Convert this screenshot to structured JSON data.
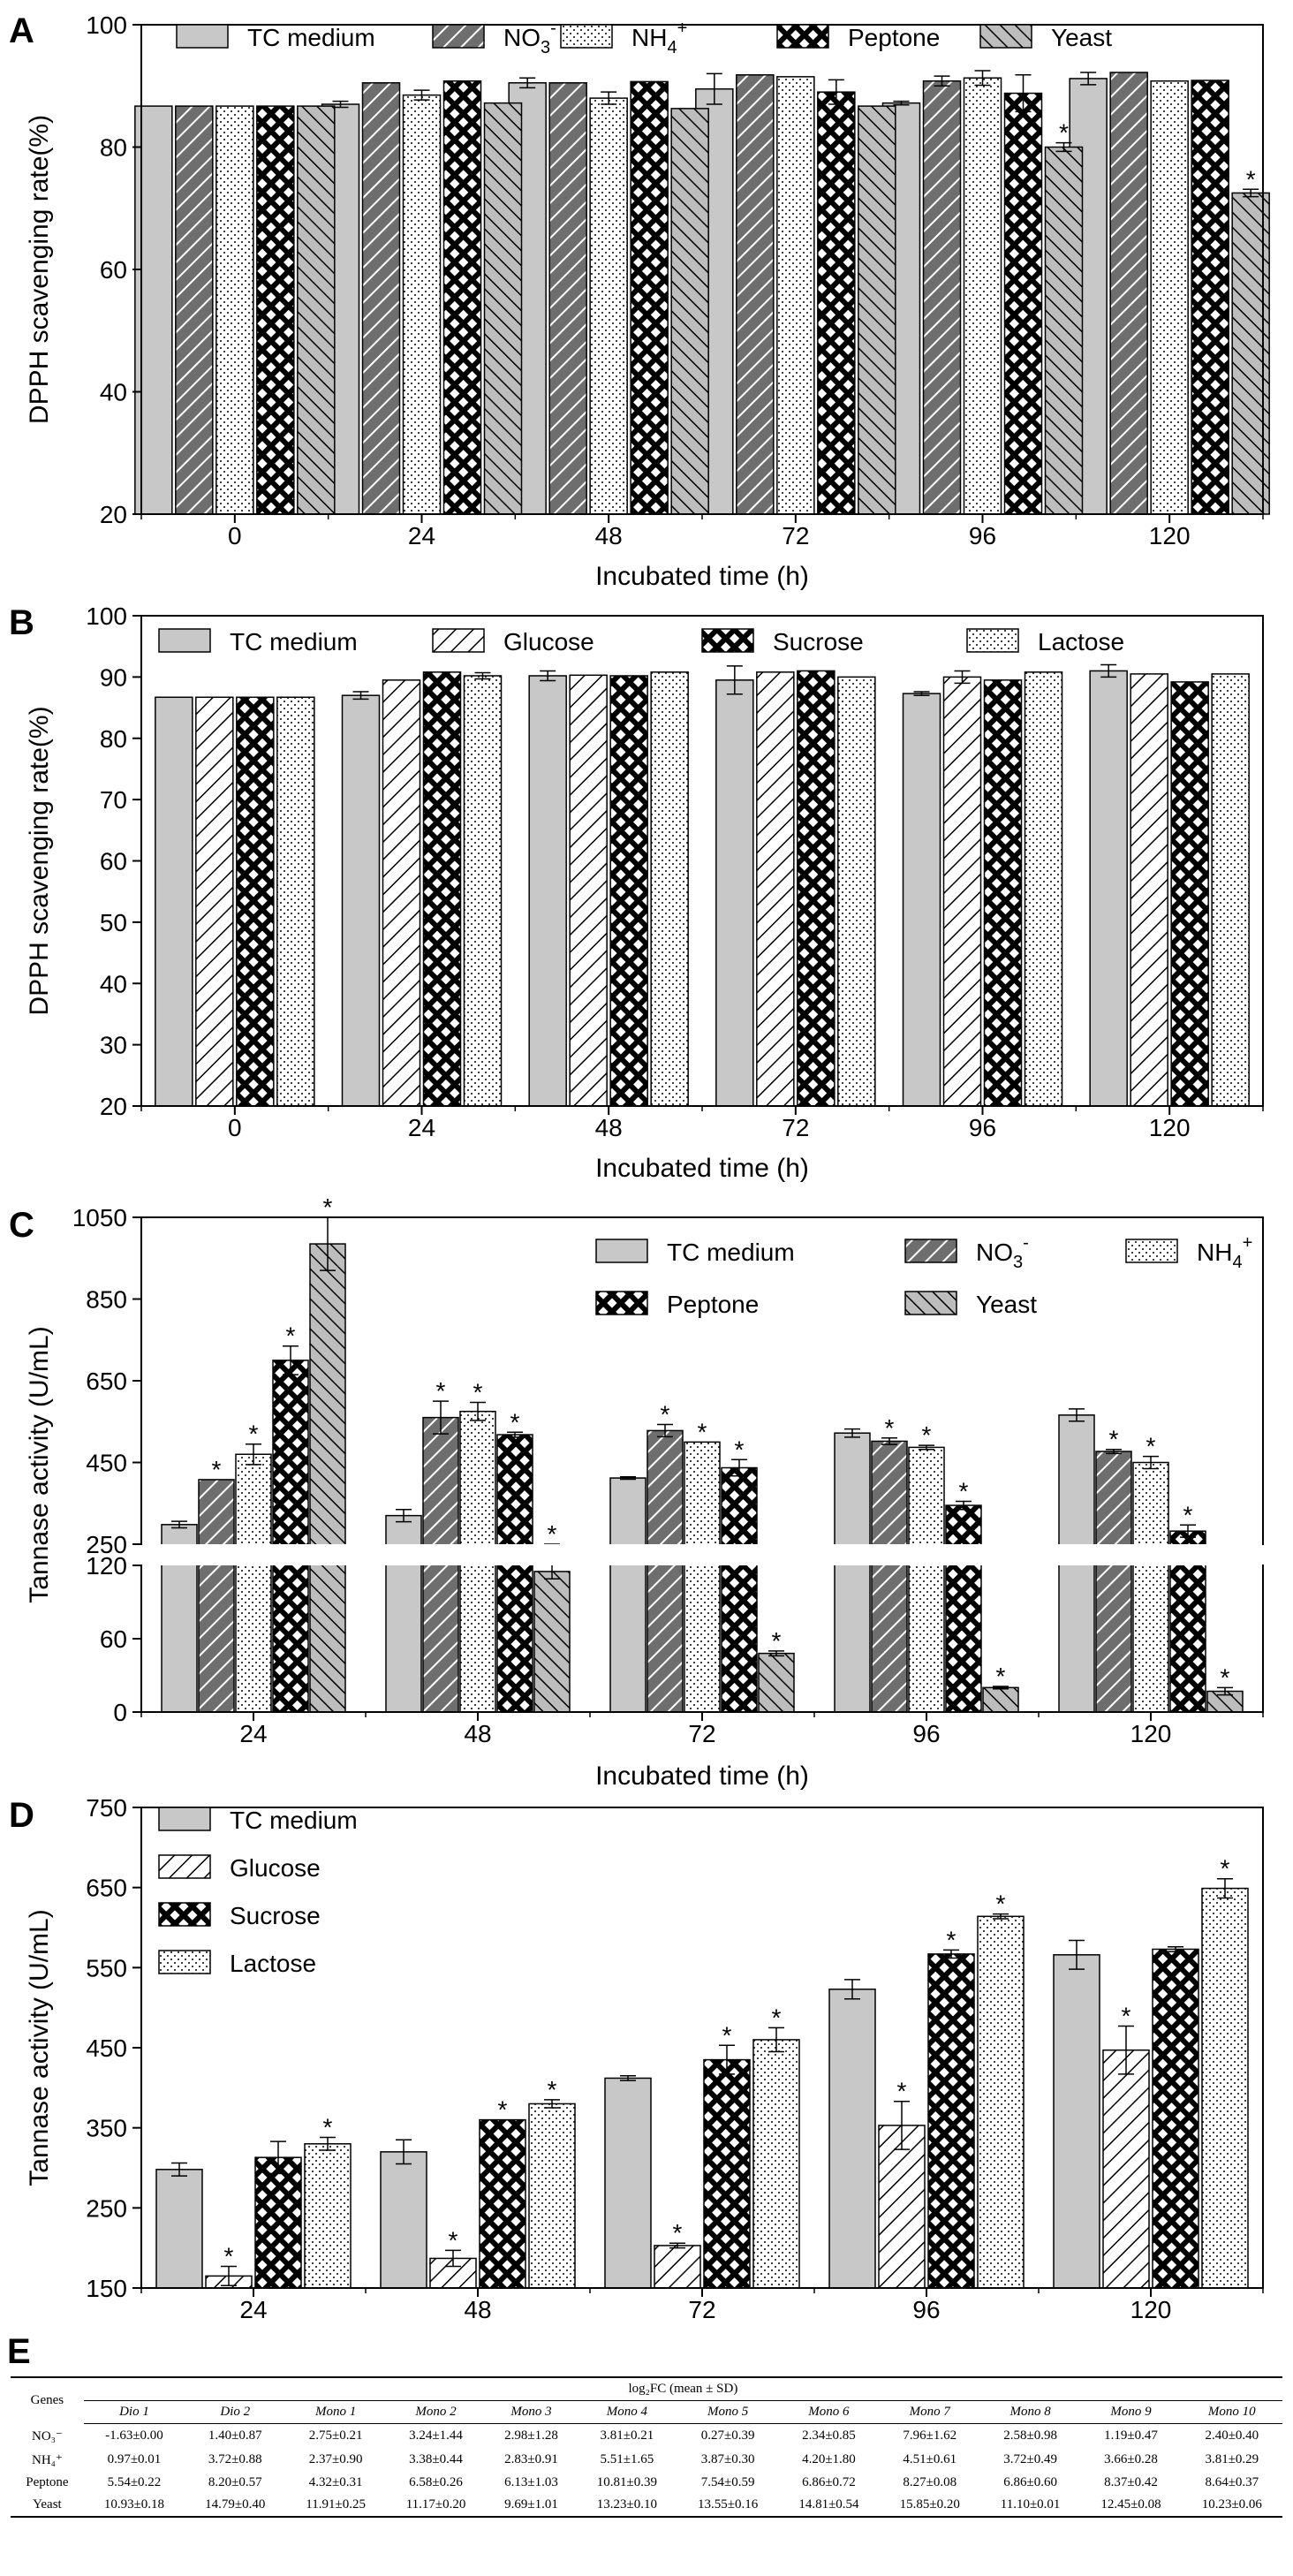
{
  "colors": {
    "solid": "#c8c8c8",
    "dark": "#6e6e6e",
    "line": "#000000"
  },
  "chart_data": [
    {
      "panel": "A",
      "type": "bar",
      "title": "",
      "xlabel": "Incubated time (h)",
      "ylabel": "DPPH scavenging rate(%)",
      "ylim": [
        20,
        100
      ],
      "yticks": [
        "20",
        "40",
        "60",
        "80",
        "100"
      ],
      "categories": [
        "0",
        "24",
        "48",
        "72",
        "96",
        "120"
      ],
      "legend_position": "top",
      "series": [
        {
          "name": "TC medium",
          "sup": "",
          "pattern": "solid",
          "values": [
            86.7,
            87.0,
            90.5,
            89.5,
            87.2,
            91.2
          ],
          "errors": [
            0,
            0.5,
            0.8,
            2.5,
            0.3,
            1.0
          ],
          "sig": [
            false,
            false,
            false,
            false,
            false,
            false
          ]
        },
        {
          "name": "NO3-",
          "sup": "",
          "pattern": "dark",
          "values": [
            86.7,
            90.5,
            90.5,
            91.8,
            90.8,
            92.2
          ],
          "errors": [
            0,
            0,
            0,
            0,
            0.8,
            0
          ],
          "sig": [
            false,
            false,
            false,
            false,
            false,
            false
          ]
        },
        {
          "name": "NH4+",
          "sup": "",
          "pattern": "dots",
          "values": [
            86.7,
            88.5,
            88.0,
            91.5,
            91.3,
            90.8
          ],
          "errors": [
            0,
            0.8,
            1.0,
            0,
            1.2,
            0
          ],
          "sig": [
            false,
            false,
            false,
            false,
            false,
            false
          ]
        },
        {
          "name": "Peptone",
          "sup": "",
          "pattern": "cross",
          "values": [
            86.7,
            90.8,
            90.7,
            89.0,
            88.8,
            90.9
          ],
          "errors": [
            0,
            0,
            0,
            2.0,
            3.0,
            0
          ],
          "sig": [
            false,
            false,
            false,
            false,
            false,
            false
          ]
        },
        {
          "name": "Yeast",
          "sup": "",
          "pattern": "hatch",
          "values": [
            86.7,
            87.2,
            86.3,
            86.7,
            80.0,
            72.5
          ],
          "errors": [
            0,
            0,
            0,
            0,
            0.7,
            0.6
          ],
          "sig": [
            false,
            false,
            false,
            false,
            true,
            true
          ]
        }
      ]
    },
    {
      "panel": "B",
      "type": "bar",
      "title": "",
      "xlabel": "Incubated time (h)",
      "ylabel": "DPPH scavenging rate(%)",
      "ylim": [
        20,
        100
      ],
      "yticks": [
        "20",
        "30",
        "40",
        "50",
        "60",
        "70",
        "80",
        "90",
        "100"
      ],
      "categories": [
        "0",
        "24",
        "48",
        "72",
        "96",
        "120"
      ],
      "legend_position": "top",
      "series": [
        {
          "name": "TC medium",
          "pattern": "solid",
          "values": [
            86.7,
            87.0,
            90.2,
            89.5,
            87.3,
            91.0
          ],
          "errors": [
            0,
            0.6,
            0.8,
            2.3,
            0.3,
            1.0
          ],
          "sig": [
            false,
            false,
            false,
            false,
            false,
            false
          ]
        },
        {
          "name": "Glucose",
          "pattern": "slash",
          "values": [
            86.7,
            89.5,
            90.3,
            90.8,
            90.0,
            90.5
          ],
          "errors": [
            0,
            0,
            0,
            0,
            1.0,
            0
          ],
          "sig": [
            false,
            false,
            false,
            false,
            false,
            false
          ]
        },
        {
          "name": "Sucrose",
          "pattern": "cross",
          "values": [
            86.7,
            90.8,
            90.2,
            91.0,
            89.5,
            89.2
          ],
          "errors": [
            0,
            0,
            0,
            0,
            0,
            0
          ],
          "sig": [
            false,
            false,
            false,
            false,
            false,
            false
          ]
        },
        {
          "name": "Lactose",
          "pattern": "dots",
          "values": [
            86.7,
            90.2,
            90.8,
            90.0,
            90.8,
            90.5
          ],
          "errors": [
            0,
            0.5,
            0,
            0,
            0,
            0
          ],
          "sig": [
            false,
            false,
            false,
            false,
            false,
            false
          ]
        }
      ]
    },
    {
      "panel": "C",
      "type": "bar",
      "title": "",
      "xlabel": "Incubated time (h)",
      "ylabel": "Tannase activity (U/mL)",
      "axis_break": {
        "lower": [
          0,
          120
        ],
        "upper": [
          250,
          1050
        ]
      },
      "yticks_lower": [
        "0",
        "60",
        "120"
      ],
      "yticks_upper": [
        "250",
        "450",
        "650",
        "850",
        "1050"
      ],
      "categories": [
        "24",
        "48",
        "72",
        "96",
        "120"
      ],
      "legend_position": "top-right",
      "series": [
        {
          "name": "TC medium",
          "pattern": "solid",
          "values": [
            298,
            320,
            412,
            522,
            566
          ],
          "errors": [
            8,
            15,
            3,
            10,
            15
          ],
          "sig": [
            false,
            false,
            false,
            false,
            false
          ]
        },
        {
          "name": "NO3-",
          "pattern": "dark",
          "values": [
            408,
            560,
            528,
            502,
            477
          ],
          "errors": [
            0,
            40,
            15,
            8,
            5
          ],
          "sig": [
            true,
            true,
            true,
            true,
            true
          ]
        },
        {
          "name": "NH4+",
          "pattern": "dots",
          "values": [
            470,
            575,
            500,
            487,
            450
          ],
          "errors": [
            25,
            22,
            0,
            5,
            15
          ],
          "sig": [
            true,
            true,
            true,
            true,
            true
          ]
        },
        {
          "name": "Peptone",
          "pattern": "cross",
          "values": [
            700,
            518,
            437,
            345,
            282
          ],
          "errors": [
            35,
            6,
            20,
            10,
            15
          ],
          "sig": [
            true,
            true,
            true,
            true,
            true
          ]
        },
        {
          "name": "Yeast",
          "pattern": "hatch",
          "values": [
            985,
            115,
            48,
            20,
            17
          ],
          "errors": [
            65,
            6,
            2,
            1,
            3
          ],
          "sig": [
            true,
            true,
            true,
            true,
            true
          ]
        }
      ]
    },
    {
      "panel": "D",
      "type": "bar",
      "title": "",
      "xlabel": "Incubated time (h)",
      "ylabel": "Tannase activity (U/mL)",
      "ylim": [
        150,
        750
      ],
      "yticks": [
        "150",
        "250",
        "350",
        "450",
        "550",
        "650",
        "750"
      ],
      "categories": [
        "24",
        "48",
        "72",
        "96",
        "120"
      ],
      "legend_position": "top-left",
      "series": [
        {
          "name": "TC medium",
          "pattern": "solid",
          "values": [
            298,
            320,
            412,
            523,
            566
          ],
          "errors": [
            8,
            15,
            3,
            12,
            18
          ],
          "sig": [
            false,
            false,
            false,
            false,
            false
          ]
        },
        {
          "name": "Glucose",
          "pattern": "slash",
          "values": [
            165,
            187,
            203,
            353,
            447
          ],
          "errors": [
            12,
            10,
            3,
            30,
            30
          ],
          "sig": [
            true,
            true,
            true,
            true,
            true
          ]
        },
        {
          "name": "Sucrose",
          "pattern": "cross",
          "values": [
            313,
            360,
            435,
            567,
            573
          ],
          "errors": [
            20,
            0,
            18,
            5,
            3
          ],
          "sig": [
            false,
            true,
            true,
            true,
            false
          ]
        },
        {
          "name": "Lactose",
          "pattern": "dots",
          "values": [
            330,
            380,
            460,
            614,
            649
          ],
          "errors": [
            8,
            5,
            15,
            3,
            12
          ],
          "sig": [
            true,
            true,
            true,
            true,
            true
          ]
        }
      ]
    }
  ],
  "table": {
    "panel": "E",
    "header_genes": "Genes",
    "header_group": "log₂FC (mean ± SD)",
    "columns": [
      "Dio 1",
      "Dio 2",
      "Mono 1",
      "Mono 2",
      "Mono 3",
      "Mono 4",
      "Mono 5",
      "Mono 6",
      "Mono 7",
      "Mono 8",
      "Mono 9",
      "Mono 10"
    ],
    "rows": [
      {
        "label": "NO₃⁻",
        "cells": [
          "-1.63±0.00",
          "1.40±0.87",
          "2.75±0.21",
          "3.24±1.44",
          "2.98±1.28",
          "3.81±0.21",
          "0.27±0.39",
          "2.34±0.85",
          "7.96±1.62",
          "2.58±0.98",
          "1.19±0.47",
          "2.40±0.40"
        ]
      },
      {
        "label": "NH₄⁺",
        "cells": [
          "0.97±0.01",
          "3.72±0.88",
          "2.37±0.90",
          "3.38±0.44",
          "2.83±0.91",
          "5.51±1.65",
          "3.87±0.30",
          "4.20±1.80",
          "4.51±0.61",
          "3.72±0.49",
          "3.66±0.28",
          "3.81±0.29"
        ]
      },
      {
        "label": "Peptone",
        "cells": [
          "5.54±0.22",
          "8.20±0.57",
          "4.32±0.31",
          "6.58±0.26",
          "6.13±1.03",
          "10.81±0.39",
          "7.54±0.59",
          "6.86±0.72",
          "8.27±0.08",
          "6.86±0.60",
          "8.37±0.42",
          "8.64±0.37"
        ]
      },
      {
        "label": "Yeast",
        "cells": [
          "10.93±0.18",
          "14.79±0.40",
          "11.91±0.25",
          "11.17±0.20",
          "9.69±1.01",
          "13.23±0.10",
          "13.55±0.16",
          "14.81±0.54",
          "15.85±0.20",
          "11.10±0.01",
          "12.45±0.08",
          "10.23±0.06"
        ]
      }
    ]
  }
}
